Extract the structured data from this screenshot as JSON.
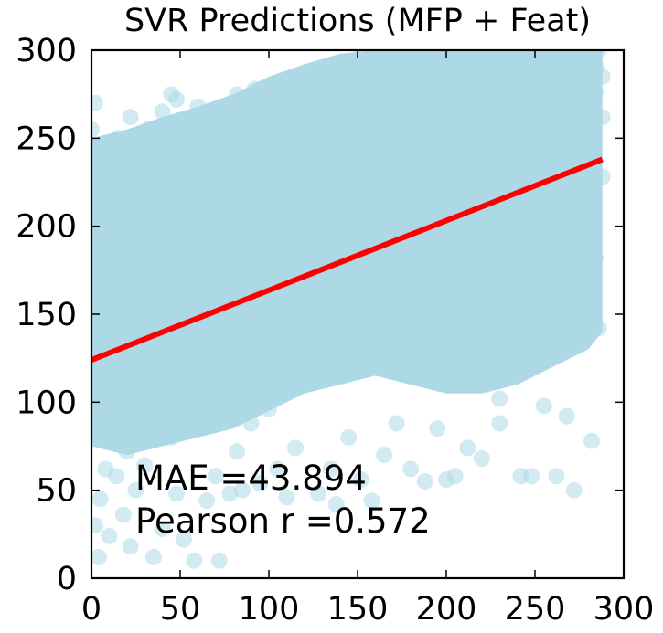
{
  "chart_data": {
    "type": "scatter",
    "title": "SVR Predictions (MFP + Feat)",
    "xlabel": "",
    "ylabel": "",
    "xlim": [
      0,
      300
    ],
    "ylim": [
      0,
      300
    ],
    "xticks": [
      0,
      50,
      100,
      150,
      200,
      250,
      300
    ],
    "yticks": [
      0,
      50,
      100,
      150,
      200,
      250,
      300
    ],
    "grid": false,
    "point_color": "#add8e6",
    "point_opacity": 0.55,
    "fit_line": {
      "color": "#ff0000",
      "x": [
        0,
        288
      ],
      "y": [
        124,
        238
      ]
    },
    "annotations": [
      "MAE =43.894",
      "Pearson r =0.572"
    ],
    "series": [
      {
        "points": [
          [
            2,
            30
          ],
          [
            4,
            12
          ],
          [
            5,
            45
          ],
          [
            8,
            62
          ],
          [
            10,
            24
          ],
          [
            12,
            88
          ],
          [
            14,
            58
          ],
          [
            15,
            105
          ],
          [
            18,
            36
          ],
          [
            20,
            72
          ],
          [
            22,
            18
          ],
          [
            25,
            50
          ],
          [
            28,
            92
          ],
          [
            30,
            64
          ],
          [
            35,
            12
          ],
          [
            38,
            115
          ],
          [
            40,
            28
          ],
          [
            45,
            80
          ],
          [
            48,
            48
          ],
          [
            52,
            22
          ],
          [
            58,
            10
          ],
          [
            62,
            135
          ],
          [
            65,
            44
          ],
          [
            70,
            58
          ],
          [
            72,
            10
          ],
          [
            75,
            108
          ],
          [
            78,
            48
          ],
          [
            82,
            72
          ],
          [
            85,
            50
          ],
          [
            90,
            88
          ],
          [
            95,
            54
          ],
          [
            100,
            96
          ],
          [
            105,
            62
          ],
          [
            110,
            46
          ],
          [
            115,
            74
          ],
          [
            120,
            110
          ],
          [
            128,
            48
          ],
          [
            135,
            62
          ],
          [
            138,
            42
          ],
          [
            145,
            80
          ],
          [
            152,
            56
          ],
          [
            158,
            44
          ],
          [
            165,
            70
          ],
          [
            172,
            88
          ],
          [
            180,
            62
          ],
          [
            188,
            55
          ],
          [
            195,
            85
          ],
          [
            200,
            56
          ],
          [
            205,
            58
          ],
          [
            212,
            74
          ],
          [
            220,
            68
          ],
          [
            230,
            88
          ],
          [
            242,
            58
          ],
          [
            248,
            58
          ],
          [
            262,
            58
          ],
          [
            272,
            50
          ],
          [
            282,
            78
          ],
          [
            255,
            98
          ],
          [
            268,
            92
          ],
          [
            230,
            102
          ],
          [
            2,
            270
          ],
          [
            0,
            255
          ],
          [
            3,
            240
          ],
          [
            5,
            200
          ],
          [
            8,
            225
          ],
          [
            12,
            215
          ],
          [
            15,
            250
          ],
          [
            20,
            230
          ],
          [
            22,
            262
          ],
          [
            28,
            244
          ],
          [
            32,
            255
          ],
          [
            35,
            220
          ],
          [
            40,
            265
          ],
          [
            45,
            275
          ],
          [
            48,
            272
          ],
          [
            52,
            258
          ],
          [
            55,
            242
          ],
          [
            60,
            268
          ],
          [
            65,
            255
          ],
          [
            68,
            240
          ],
          [
            70,
            262
          ],
          [
            75,
            248
          ],
          [
            82,
            275
          ],
          [
            85,
            262
          ],
          [
            88,
            250
          ],
          [
            92,
            278
          ],
          [
            95,
            265
          ],
          [
            100,
            270
          ],
          [
            105,
            258
          ],
          [
            110,
            280
          ],
          [
            115,
            268
          ],
          [
            120,
            285
          ],
          [
            125,
            275
          ],
          [
            130,
            290
          ],
          [
            135,
            280
          ],
          [
            140,
            292
          ],
          [
            145,
            285
          ],
          [
            150,
            295
          ],
          [
            155,
            288
          ],
          [
            160,
            298
          ],
          [
            165,
            290
          ],
          [
            170,
            296
          ],
          [
            180,
            300
          ],
          [
            190,
            295
          ],
          [
            200,
            298
          ],
          [
            210,
            292
          ],
          [
            220,
            300
          ],
          [
            230,
            295
          ],
          [
            240,
            298
          ],
          [
            250,
            292
          ],
          [
            260,
            300
          ],
          [
            270,
            296
          ],
          [
            280,
            298
          ],
          [
            285,
            290
          ],
          [
            288,
            285
          ],
          [
            286,
            300
          ],
          [
            282,
            288
          ],
          [
            276,
            294
          ],
          [
            284,
            276
          ],
          [
            288,
            262
          ],
          [
            5,
            175
          ],
          [
            6,
            145
          ],
          [
            10,
            160
          ],
          [
            14,
            195
          ],
          [
            18,
            130
          ],
          [
            25,
            168
          ],
          [
            30,
            142
          ],
          [
            38,
            205
          ],
          [
            42,
            125
          ],
          [
            50,
            185
          ],
          [
            55,
            158
          ],
          [
            60,
            215
          ],
          [
            66,
            140
          ],
          [
            72,
            190
          ],
          [
            80,
            165
          ],
          [
            88,
            138
          ],
          [
            96,
            210
          ],
          [
            102,
            150
          ],
          [
            108,
            182
          ],
          [
            115,
            128
          ],
          [
            122,
            225
          ],
          [
            128,
            162
          ],
          [
            134,
            196
          ],
          [
            140,
            142
          ],
          [
            148,
            232
          ],
          [
            152,
            170
          ],
          [
            158,
            205
          ],
          [
            164,
            148
          ],
          [
            170,
            242
          ],
          [
            176,
            180
          ],
          [
            182,
            215
          ],
          [
            188,
            156
          ],
          [
            194,
            250
          ],
          [
            200,
            190
          ],
          [
            206,
            222
          ],
          [
            212,
            160
          ],
          [
            218,
            262
          ],
          [
            224,
            195
          ],
          [
            230,
            232
          ],
          [
            236,
            168
          ],
          [
            242,
            268
          ],
          [
            248,
            205
          ],
          [
            254,
            240
          ],
          [
            260,
            175
          ],
          [
            266,
            278
          ],
          [
            272,
            212
          ],
          [
            278,
            248
          ],
          [
            284,
            182
          ],
          [
            288,
            228
          ],
          [
            286,
            142
          ]
        ]
      }
    ]
  }
}
